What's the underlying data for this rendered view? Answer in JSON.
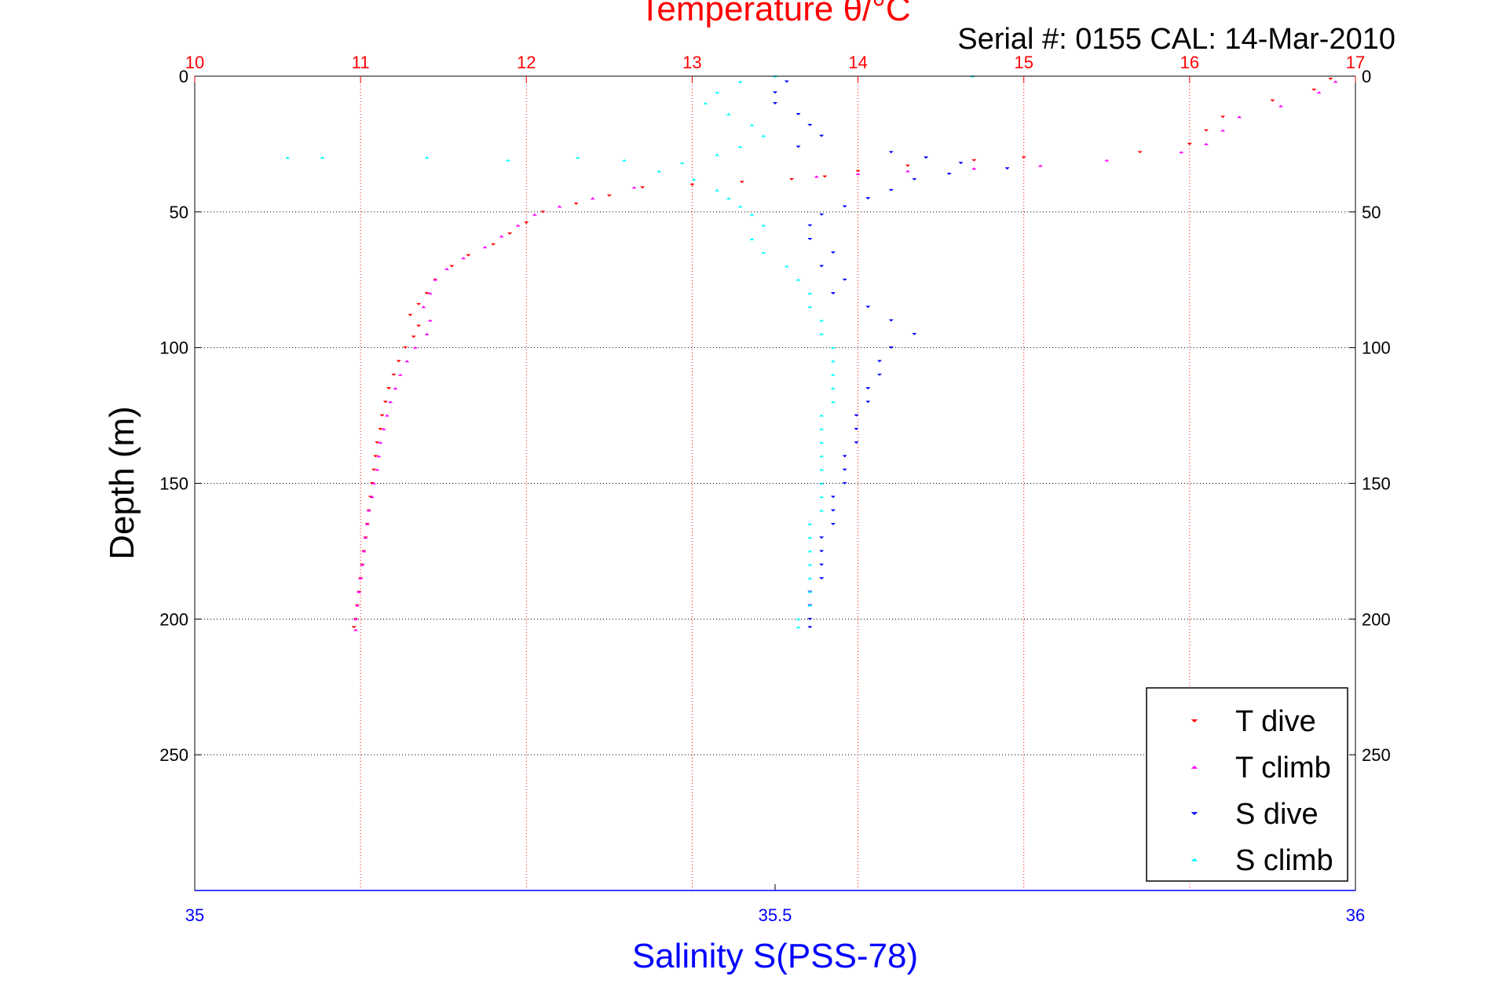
{
  "chart_data": {
    "type": "scatter",
    "title": "Temperature θ/°C",
    "subtitle": "Serial #: 0155  CAL: 14-Mar-2010",
    "xlabel_top": "Temperature θ/°C",
    "xlabel_bottom": "Salinity S(PSS-78)",
    "ylabel": "Depth (m)",
    "temperature_axis": {
      "range": [
        10,
        17
      ],
      "ticks": [
        "10",
        "11",
        "12",
        "13",
        "14",
        "15",
        "16",
        "17"
      ],
      "color": "#ff0000"
    },
    "salinity_axis": {
      "range": [
        35,
        36
      ],
      "ticks": [
        "35",
        "35.5",
        "36"
      ],
      "color": "#0000ff"
    },
    "depth_axis": {
      "range": [
        0,
        300
      ],
      "reversed": true,
      "ticks": [
        "0",
        "50",
        "100",
        "150",
        "200",
        "250"
      ]
    },
    "grid": true,
    "legend_placement": "bottom-right",
    "series": [
      {
        "name": "T dive",
        "axis": "temperature",
        "color": "#ff0000",
        "marker": "triangle-down",
        "points": [
          [
            16.85,
            1
          ],
          [
            16.75,
            5
          ],
          [
            16.5,
            9
          ],
          [
            16.2,
            15
          ],
          [
            16.1,
            20
          ],
          [
            16.0,
            25
          ],
          [
            15.7,
            28
          ],
          [
            15.0,
            30
          ],
          [
            14.7,
            31
          ],
          [
            14.3,
            33
          ],
          [
            14.0,
            35
          ],
          [
            13.8,
            37
          ],
          [
            13.6,
            38
          ],
          [
            13.3,
            39
          ],
          [
            13.0,
            40
          ],
          [
            12.7,
            41
          ],
          [
            12.5,
            44
          ],
          [
            12.3,
            47
          ],
          [
            12.1,
            50
          ],
          [
            12.0,
            54
          ],
          [
            11.9,
            58
          ],
          [
            11.8,
            62
          ],
          [
            11.65,
            66
          ],
          [
            11.55,
            70
          ],
          [
            11.45,
            75
          ],
          [
            11.4,
            80
          ],
          [
            11.35,
            84
          ],
          [
            11.3,
            88
          ],
          [
            11.35,
            92
          ],
          [
            11.32,
            96
          ],
          [
            11.27,
            100
          ],
          [
            11.23,
            105
          ],
          [
            11.2,
            110
          ],
          [
            11.17,
            115
          ],
          [
            11.15,
            120
          ],
          [
            11.13,
            125
          ],
          [
            11.12,
            130
          ],
          [
            11.1,
            135
          ],
          [
            11.09,
            140
          ],
          [
            11.08,
            145
          ],
          [
            11.07,
            150
          ],
          [
            11.06,
            155
          ],
          [
            11.05,
            160
          ],
          [
            11.04,
            165
          ],
          [
            11.03,
            170
          ],
          [
            11.02,
            175
          ],
          [
            11.01,
            180
          ],
          [
            11.0,
            185
          ],
          [
            10.99,
            190
          ],
          [
            10.98,
            195
          ],
          [
            10.97,
            200
          ],
          [
            10.96,
            203
          ]
        ]
      },
      {
        "name": "T climb",
        "axis": "temperature",
        "color": "#ff00ff",
        "marker": "triangle-up",
        "points": [
          [
            16.88,
            2
          ],
          [
            16.78,
            6
          ],
          [
            16.55,
            11
          ],
          [
            16.3,
            15
          ],
          [
            16.2,
            20
          ],
          [
            16.1,
            25
          ],
          [
            15.95,
            28
          ],
          [
            15.5,
            31
          ],
          [
            15.1,
            33
          ],
          [
            14.7,
            34
          ],
          [
            14.3,
            35
          ],
          [
            14.0,
            36
          ],
          [
            13.75,
            37
          ],
          [
            12.65,
            41
          ],
          [
            12.4,
            45
          ],
          [
            12.2,
            48
          ],
          [
            12.05,
            51
          ],
          [
            11.95,
            55
          ],
          [
            11.85,
            59
          ],
          [
            11.75,
            63
          ],
          [
            11.62,
            67
          ],
          [
            11.52,
            71
          ],
          [
            11.45,
            75
          ],
          [
            11.42,
            80
          ],
          [
            11.38,
            85
          ],
          [
            11.42,
            90
          ],
          [
            11.4,
            95
          ],
          [
            11.33,
            100
          ],
          [
            11.28,
            105
          ],
          [
            11.24,
            110
          ],
          [
            11.21,
            115
          ],
          [
            11.18,
            120
          ],
          [
            11.16,
            125
          ],
          [
            11.14,
            130
          ],
          [
            11.12,
            135
          ],
          [
            11.11,
            140
          ],
          [
            11.1,
            145
          ],
          [
            11.08,
            150
          ],
          [
            11.07,
            155
          ],
          [
            11.05,
            160
          ],
          [
            11.04,
            165
          ],
          [
            11.03,
            170
          ],
          [
            11.02,
            175
          ],
          [
            11.01,
            180
          ],
          [
            11.0,
            185
          ],
          [
            10.99,
            190
          ],
          [
            10.98,
            195
          ],
          [
            10.97,
            200
          ],
          [
            10.97,
            204
          ]
        ]
      },
      {
        "name": "S dive",
        "axis": "salinity",
        "color": "#0000ff",
        "marker": "triangle-down",
        "points": [
          [
            35.51,
            2
          ],
          [
            35.5,
            6
          ],
          [
            35.5,
            10
          ],
          [
            35.52,
            14
          ],
          [
            35.53,
            18
          ],
          [
            35.54,
            22
          ],
          [
            35.52,
            26
          ],
          [
            35.6,
            28
          ],
          [
            35.63,
            30
          ],
          [
            35.66,
            32
          ],
          [
            35.7,
            34
          ],
          [
            35.65,
            36
          ],
          [
            35.62,
            38
          ],
          [
            35.6,
            42
          ],
          [
            35.58,
            45
          ],
          [
            35.56,
            48
          ],
          [
            35.54,
            51
          ],
          [
            35.53,
            55
          ],
          [
            35.53,
            60
          ],
          [
            35.55,
            65
          ],
          [
            35.54,
            70
          ],
          [
            35.56,
            75
          ],
          [
            35.55,
            80
          ],
          [
            35.58,
            85
          ],
          [
            35.6,
            90
          ],
          [
            35.62,
            95
          ],
          [
            35.6,
            100
          ],
          [
            35.59,
            105
          ],
          [
            35.59,
            110
          ],
          [
            35.58,
            115
          ],
          [
            35.58,
            120
          ],
          [
            35.57,
            125
          ],
          [
            35.57,
            130
          ],
          [
            35.57,
            135
          ],
          [
            35.56,
            140
          ],
          [
            35.56,
            145
          ],
          [
            35.56,
            150
          ],
          [
            35.55,
            155
          ],
          [
            35.55,
            160
          ],
          [
            35.55,
            165
          ],
          [
            35.54,
            170
          ],
          [
            35.54,
            175
          ],
          [
            35.54,
            180
          ],
          [
            35.54,
            185
          ],
          [
            35.53,
            190
          ],
          [
            35.53,
            195
          ],
          [
            35.53,
            200
          ],
          [
            35.53,
            203
          ]
        ]
      },
      {
        "name": "S climb",
        "axis": "salinity",
        "color": "#00ffff",
        "marker": "triangle-up",
        "points": [
          [
            35.47,
            2
          ],
          [
            35.45,
            6
          ],
          [
            35.44,
            10
          ],
          [
            35.46,
            14
          ],
          [
            35.48,
            18
          ],
          [
            35.49,
            22
          ],
          [
            35.47,
            26
          ],
          [
            35.45,
            29
          ],
          [
            35.42,
            32
          ],
          [
            35.4,
            35
          ],
          [
            35.43,
            38
          ],
          [
            35.45,
            42
          ],
          [
            35.46,
            45
          ],
          [
            35.47,
            48
          ],
          [
            35.48,
            51
          ],
          [
            35.49,
            55
          ],
          [
            35.48,
            60
          ],
          [
            35.49,
            65
          ],
          [
            35.51,
            70
          ],
          [
            35.52,
            75
          ],
          [
            35.53,
            80
          ],
          [
            35.53,
            85
          ],
          [
            35.54,
            90
          ],
          [
            35.54,
            95
          ],
          [
            35.55,
            100
          ],
          [
            35.55,
            105
          ],
          [
            35.55,
            110
          ],
          [
            35.55,
            115
          ],
          [
            35.55,
            120
          ],
          [
            35.54,
            125
          ],
          [
            35.54,
            130
          ],
          [
            35.54,
            135
          ],
          [
            35.54,
            140
          ],
          [
            35.54,
            145
          ],
          [
            35.54,
            150
          ],
          [
            35.54,
            155
          ],
          [
            35.54,
            160
          ],
          [
            35.53,
            165
          ],
          [
            35.53,
            170
          ],
          [
            35.53,
            175
          ],
          [
            35.53,
            180
          ],
          [
            35.53,
            185
          ],
          [
            35.53,
            190
          ],
          [
            35.53,
            195
          ],
          [
            35.52,
            200
          ],
          [
            35.52,
            203
          ],
          [
            35.08,
            30
          ],
          [
            35.11,
            30
          ],
          [
            35.2,
            30
          ],
          [
            35.27,
            31
          ],
          [
            35.33,
            30
          ],
          [
            35.37,
            31
          ],
          [
            35.5,
            0
          ],
          [
            35.67,
            0
          ]
        ]
      }
    ]
  }
}
